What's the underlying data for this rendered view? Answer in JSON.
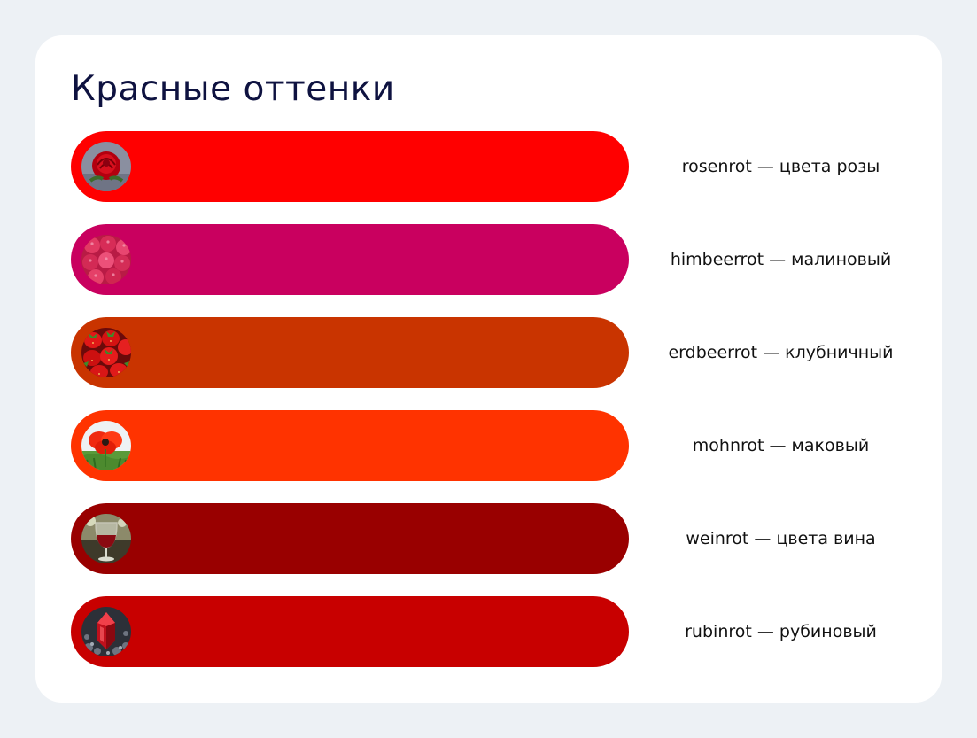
{
  "title": "Красные оттенки",
  "rows": [
    {
      "label": "rosenrot — цвета розы",
      "color": "#ff0000",
      "icon": "rose-photo-icon"
    },
    {
      "label": "himbeerrot — малиновый",
      "color": "#c9005f",
      "icon": "raspberry-photo-icon"
    },
    {
      "label": "erdbeerrot — клубничный",
      "color": "#c93400",
      "icon": "strawberry-photo-icon"
    },
    {
      "label": "mohnrot — маковый",
      "color": "#ff3300",
      "icon": "poppy-photo-icon"
    },
    {
      "label": "weinrot — цвета вина",
      "color": "#990000",
      "icon": "wine-glass-photo-icon"
    },
    {
      "label": "rubinrot — рубиновый",
      "color": "#c80000",
      "icon": "ruby-crystal-photo-icon"
    }
  ]
}
